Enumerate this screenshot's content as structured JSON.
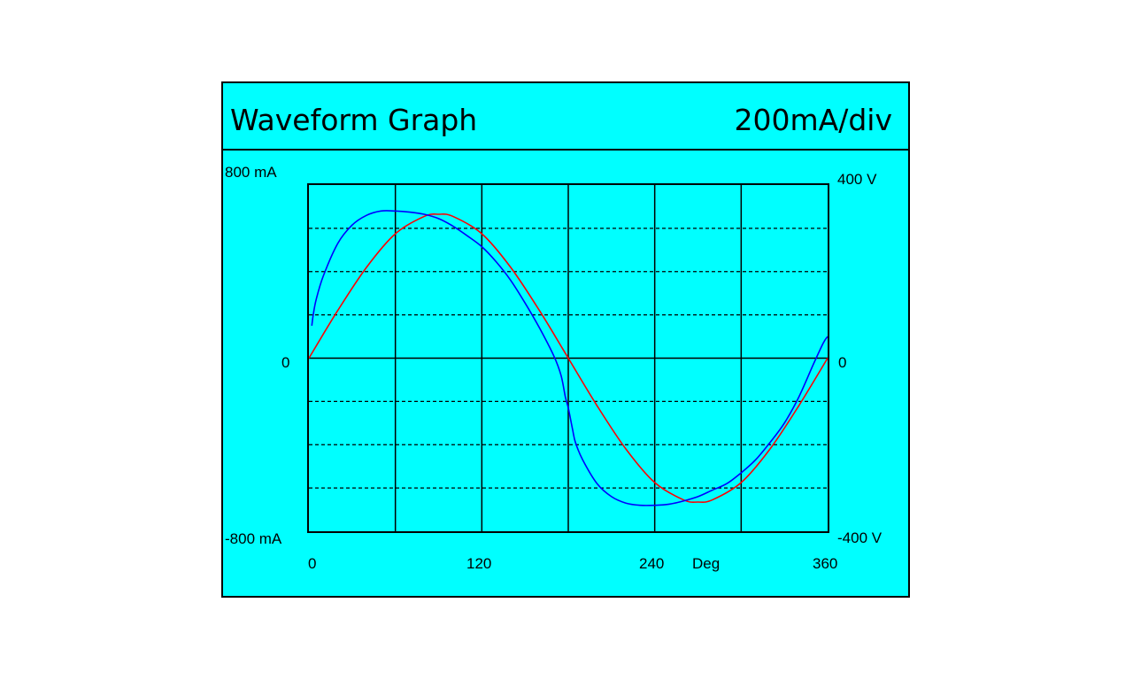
{
  "window": {
    "title": "Waveform Graph",
    "scale": "200mA/div"
  },
  "chart_data": {
    "type": "line",
    "title": "Waveform Graph",
    "scale_label": "200mA/div",
    "x_unit": "Deg",
    "xlim": [
      0,
      360
    ],
    "x_ticks": [
      "0",
      "120",
      "240",
      "360"
    ],
    "y_left": {
      "top": "800 mA",
      "mid": "0",
      "bottom": "-800 mA",
      "range": [
        -800,
        800
      ]
    },
    "y_right": {
      "top": "400 V",
      "mid": "0",
      "bottom": "-400 V",
      "range": [
        -400,
        400
      ]
    },
    "grid": {
      "vertical_step_deg": 60,
      "horizontal_step_ma": 200,
      "dashed": true
    },
    "series": [
      {
        "color": "#ff0000",
        "axis": "left",
        "x": [
          0,
          20,
          40,
          60,
          80,
          90,
          100,
          120,
          140,
          160,
          180,
          200,
          220,
          240,
          260,
          270,
          280,
          300,
          320,
          340,
          360
        ],
        "y": [
          0,
          220,
          420,
          575,
          655,
          665,
          655,
          575,
          420,
          220,
          0,
          -220,
          -420,
          -575,
          -655,
          -665,
          -655,
          -575,
          -420,
          -220,
          0
        ]
      },
      {
        "color": "#0000ff",
        "axis": "left",
        "x": [
          2,
          3,
          5,
          10,
          20,
          30,
          40,
          50,
          60,
          70,
          80,
          90,
          100,
          110,
          120,
          130,
          140,
          150,
          160,
          170,
          175,
          178,
          180,
          183,
          185,
          190,
          200,
          210,
          220,
          230,
          240,
          250,
          260,
          270,
          280,
          290,
          300,
          310,
          320,
          330,
          340,
          350,
          357,
          360
        ],
        "y": [
          150,
          200,
          270,
          380,
          530,
          615,
          660,
          680,
          680,
          675,
          665,
          645,
          610,
          565,
          515,
          445,
          360,
          255,
          140,
          10,
          -80,
          -180,
          -230,
          -330,
          -390,
          -470,
          -580,
          -640,
          -670,
          -680,
          -680,
          -675,
          -660,
          -640,
          -610,
          -580,
          -530,
          -470,
          -390,
          -300,
          -180,
          -30,
          70,
          100
        ]
      }
    ]
  }
}
